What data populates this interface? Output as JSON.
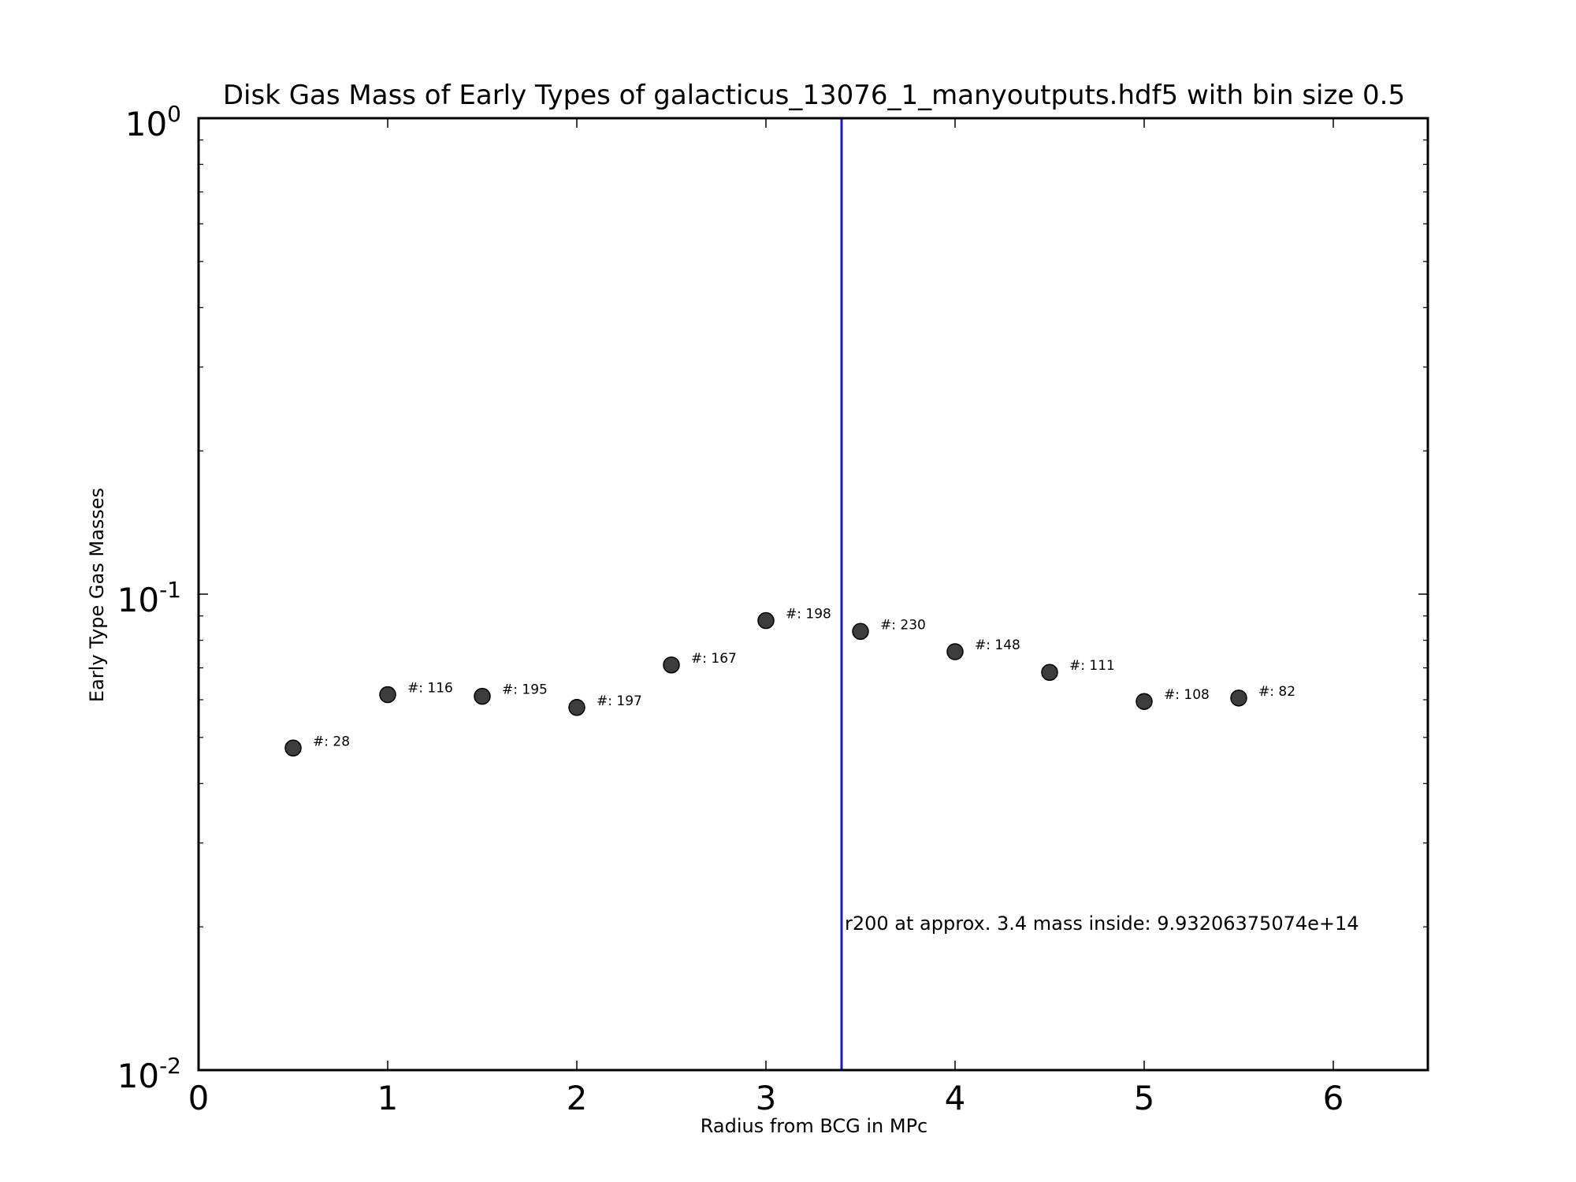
{
  "chart_data": {
    "type": "scatter",
    "title": "Disk Gas Mass of Early Types of galacticus_13076_1_manyoutputs.hdf5 with bin size 0.5",
    "xlabel": "Radius from BCG in MPc",
    "ylabel": "Early Type Gas Masses",
    "xlim": [
      0,
      6.5
    ],
    "ylim": [
      0.01,
      1
    ],
    "yscale": "log",
    "grid": false,
    "x_ticks": [
      "0",
      "1",
      "2",
      "3",
      "4",
      "5",
      "6"
    ],
    "y_ticks": [
      {
        "value": 1,
        "base": "10",
        "exp": "0"
      },
      {
        "value": 0.1,
        "base": "10",
        "exp": "-1"
      },
      {
        "value": 0.01,
        "base": "10",
        "exp": "-2"
      }
    ],
    "series": [
      {
        "marker_color": "#3d3d3d",
        "points": [
          {
            "x": 0.5,
            "y": 0.0475,
            "label": "#: 28"
          },
          {
            "x": 1.0,
            "y": 0.0615,
            "label": "#: 116"
          },
          {
            "x": 1.5,
            "y": 0.061,
            "label": "#: 195"
          },
          {
            "x": 2.0,
            "y": 0.0578,
            "label": "#: 197"
          },
          {
            "x": 2.5,
            "y": 0.071,
            "label": "#: 167"
          },
          {
            "x": 3.0,
            "y": 0.088,
            "label": "#: 198"
          },
          {
            "x": 3.5,
            "y": 0.0835,
            "label": "#: 230"
          },
          {
            "x": 4.0,
            "y": 0.0757,
            "label": "#: 148"
          },
          {
            "x": 4.5,
            "y": 0.0685,
            "label": "#: 111"
          },
          {
            "x": 5.0,
            "y": 0.0595,
            "label": "#: 108"
          },
          {
            "x": 5.5,
            "y": 0.0605,
            "label": "#: 82"
          }
        ]
      }
    ],
    "vline": {
      "x": 3.4,
      "color": "#1a1acc"
    },
    "annotation": {
      "text": "r200 at approx. 3.4 mass inside: 9.93206375074e+14",
      "x": 3.5,
      "y": 0.0197
    }
  }
}
